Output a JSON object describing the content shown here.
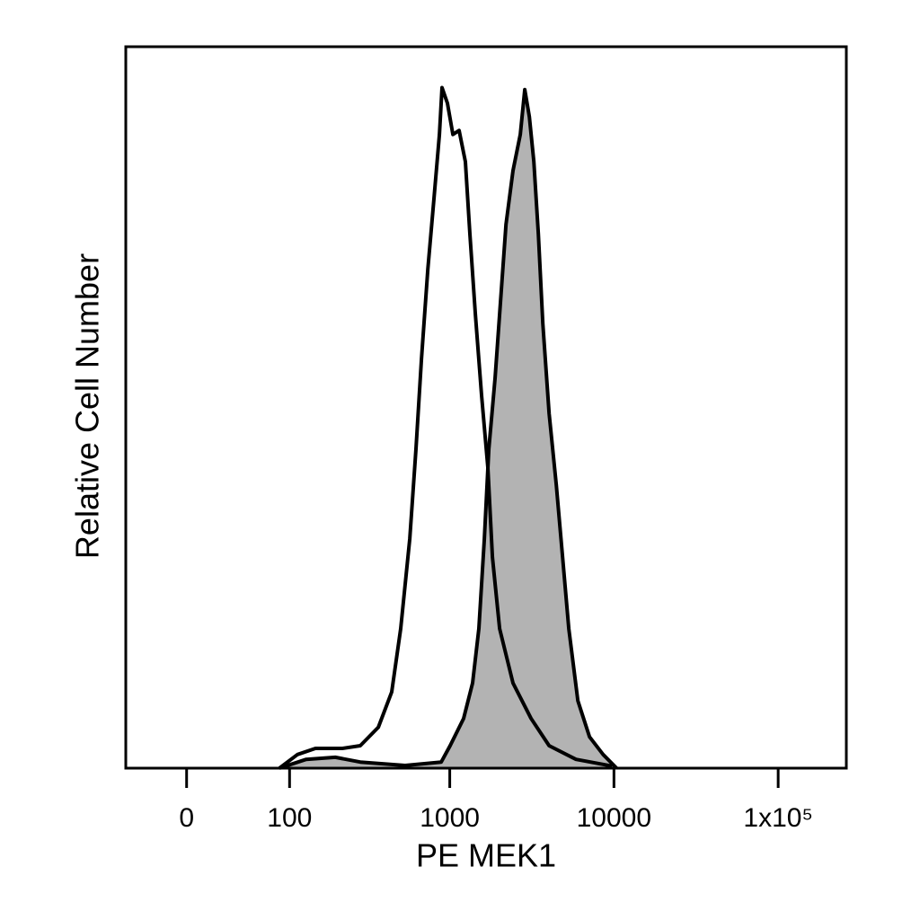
{
  "chart_data": {
    "type": "histogram",
    "xlabel": "PE MEK1",
    "ylabel": "Relative Cell Number",
    "xscale": "asinh",
    "xlim": [
      -48,
      260000
    ],
    "xticks": [
      0,
      100,
      1000,
      10000,
      {
        "value": 100000,
        "label": "1x10⁵"
      }
    ],
    "ylim": [
      0,
      106
    ],
    "series": [
      {
        "color": "#b3b3b3",
        "line_color": "#000000",
        "x": [
          85,
          129,
          198,
          283,
          534,
          887,
          1005,
          1215,
          1378,
          1505,
          1625,
          1730,
          1890,
          2012,
          2200,
          2430,
          2690,
          2865,
          3053,
          3252,
          3463,
          3688,
          4028,
          4457,
          4865,
          5313,
          6033,
          7108,
          8588,
          10375
        ],
        "values": [
          0,
          1.3,
          1.6,
          0.9,
          0.4,
          0.9,
          3.3,
          7.3,
          12.5,
          20.5,
          33.7,
          46.9,
          57.4,
          66.7,
          79.9,
          87.8,
          93.1,
          99.7,
          95.7,
          89.1,
          78.5,
          65.3,
          52.1,
          41.6,
          31,
          20.5,
          9.9,
          4.6,
          2,
          0
        ]
      },
      {
        "line_color": "#000000",
        "x": [
          85,
          113,
          148,
          219,
          283,
          366,
          442,
          502,
          570,
          622,
          672,
          735,
          802,
          865,
          897,
          968,
          1045,
          1140,
          1245,
          1327,
          1432,
          1563,
          1707,
          1820,
          2012,
          2430,
          3130,
          4028,
          5875,
          9750
        ],
        "values": [
          0,
          2,
          2.9,
          2.9,
          3.3,
          6,
          11.2,
          20.5,
          33.7,
          46.9,
          60.1,
          73.3,
          83.8,
          93.1,
          100,
          97.7,
          93.1,
          93.7,
          89.1,
          78.5,
          66.7,
          54.8,
          44.2,
          31,
          20.5,
          12.5,
          7.3,
          3.3,
          1.3,
          0.3
        ]
      }
    ]
  }
}
